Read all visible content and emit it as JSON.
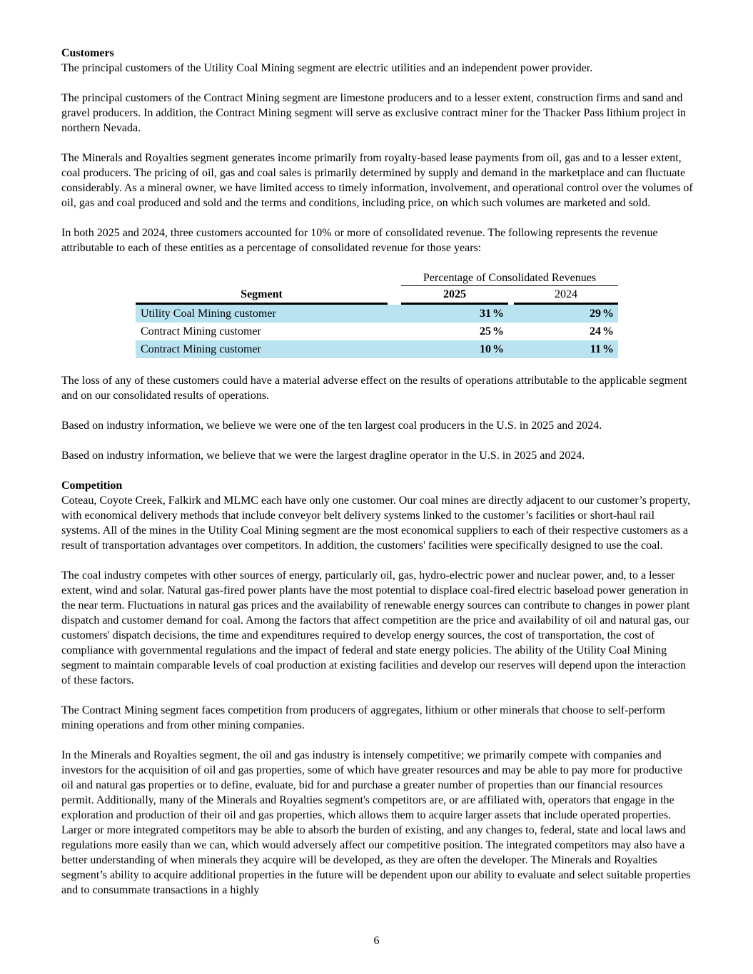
{
  "page_number": "6",
  "customers": {
    "heading": "Customers",
    "p1": "The principal customers of the Utility Coal Mining segment are electric utilities and an independent power provider.",
    "p2": "The principal customers of the Contract Mining segment are limestone producers and to a lesser extent, construction firms and sand and gravel producers. In addition, the Contract Mining segment will serve as exclusive contract miner for the Thacker Pass lithium project in northern Nevada.",
    "p3": "The Minerals and Royalties segment generates income primarily from royalty-based lease payments from oil, gas and to a lesser extent, coal producers. The pricing of oil, gas and coal sales is primarily determined by supply and demand in the marketplace and can fluctuate considerably. As a mineral owner, we have limited access to timely information, involvement, and operational control over the volumes of oil, gas and coal produced and sold and the terms and conditions, including price, on which such volumes are marketed and sold.",
    "p4": "In both 2025 and 2024, three customers accounted for 10% or more of consolidated revenue. The following represents the revenue attributable to each of these entities as a percentage of consolidated revenue for those years:",
    "p5": "The loss of any of these customers could have a material adverse effect on the results of operations attributable to the applicable segment and on our consolidated results of operations.",
    "p6": "Based on industry information, we believe we were one of the ten largest coal producers in the U.S. in 2025 and 2024.",
    "p7": "Based on industry information, we believe that we were the largest dragline operator in the U.S. in 2025 and 2024."
  },
  "table": {
    "span_header": "Percentage of Consolidated Revenues",
    "columns": {
      "segment": "Segment",
      "y2025": "2025",
      "y2024": "2024"
    },
    "unit": "%",
    "highlight_color": "#BAE3F2",
    "highlight_style": "background-color:#BAE3F2",
    "rows": [
      {
        "segment": "Utility Coal Mining customer",
        "v2025": "31",
        "v2024": "29",
        "highlighted": true
      },
      {
        "segment": "Contract Mining customer",
        "v2025": "25",
        "v2024": "24",
        "highlighted": false
      },
      {
        "segment": "Contract Mining customer",
        "v2025": "10",
        "v2024": "11",
        "highlighted": true
      }
    ]
  },
  "competition": {
    "heading": "Competition",
    "p1": "Coteau, Coyote Creek, Falkirk and MLMC each have only one customer. Our coal mines are directly adjacent to our customer’s property, with economical delivery methods that include conveyor belt delivery systems linked to the customer’s facilities or short-haul rail systems. All of the mines in the Utility Coal Mining segment are the most economical suppliers to each of their respective customers as a result of transportation advantages over competitors. In addition, the customers' facilities were specifically designed to use the coal.",
    "p2": "The coal industry competes with other sources of energy, particularly oil, gas, hydro-electric power and nuclear power, and, to a lesser extent, wind and solar. Natural gas-fired power plants have the most potential to displace coal-fired electric baseload power generation in the near term. Fluctuations in natural gas prices and the availability of renewable energy sources can contribute to changes in power plant dispatch and customer demand for coal. Among the factors that affect competition are the price and availability of oil and natural gas, our customers' dispatch decisions, the time and expenditures required to develop energy sources, the cost of transportation, the cost of compliance with governmental regulations and the impact of federal and state energy policies. The ability of the Utility Coal Mining segment to maintain comparable levels of coal production at existing facilities and develop our reserves will depend upon the interaction of these factors.",
    "p3": "The Contract Mining segment faces competition from producers of aggregates, lithium or other minerals that choose to self-perform mining operations and from other mining companies.",
    "p4": "In the Minerals and Royalties segment, the oil and gas industry is intensely competitive; we primarily compete with companies and investors for the acquisition of oil and gas properties, some of which have greater resources and may be able to pay more for productive oil and natural gas properties or to define, evaluate, bid for and purchase a greater number of properties than our financial resources permit. Additionally, many of the Minerals and Royalties segment's competitors are, or are affiliated with, operators that engage in the exploration and production of their oil and gas properties, which allows them to acquire larger assets that include operated properties. Larger or more integrated competitors may be able to absorb the burden of existing, and any changes to, federal, state and local laws and regulations more easily than we can, which would adversely affect our competitive position. The integrated competitors may also have a better understanding of when minerals they acquire will be developed, as they are often the developer. The Minerals and Royalties segment’s ability to acquire additional properties in the future will be dependent upon our ability to evaluate and select suitable properties and to consummate transactions in a highly"
  }
}
